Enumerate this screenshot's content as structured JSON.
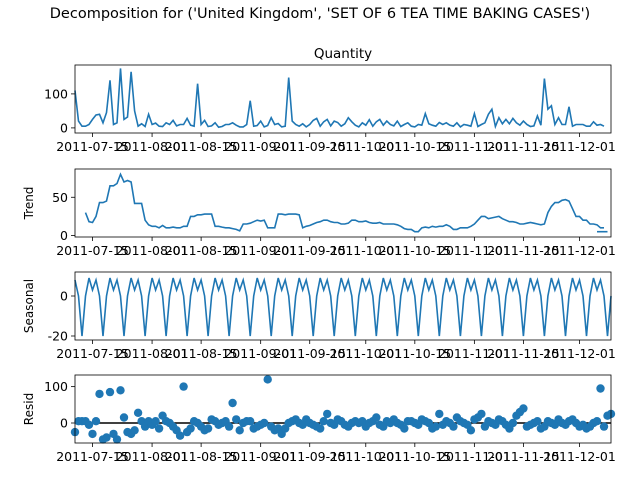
{
  "figure": {
    "suptitle": "Decomposition for ('United Kingdom', 'SET OF 6 TEA TIME BAKING CASES')"
  },
  "chart_data": [
    {
      "type": "line",
      "title": "Quantity",
      "ylabel": "",
      "xlabel": "",
      "x_tick_labels": [
        "2011-07-15",
        "2011-08-01",
        "2011-08-15",
        "2011-09-01",
        "2011-09-15",
        "2011-10-01",
        "2011-10-15",
        "2011-11-01",
        "2011-11-15",
        "2011-12-01"
      ],
      "yticks": [
        0,
        100
      ],
      "ylim": [
        -15,
        185
      ],
      "color": "#1f77b4",
      "values": [
        110,
        20,
        5,
        5,
        10,
        25,
        38,
        40,
        15,
        45,
        140,
        10,
        15,
        175,
        25,
        32,
        165,
        50,
        5,
        12,
        4,
        40,
        10,
        14,
        5,
        4,
        15,
        10,
        22,
        6,
        10,
        10,
        28,
        8,
        5,
        130,
        10,
        22,
        4,
        6,
        15,
        2,
        4,
        10,
        10,
        15,
        8,
        3,
        3,
        10,
        80,
        5,
        7,
        20,
        3,
        7,
        30,
        10,
        13,
        3,
        5,
        148,
        20,
        10,
        5,
        12,
        3,
        10,
        22,
        28,
        5,
        18,
        25,
        6,
        20,
        16,
        5,
        12,
        30,
        18,
        8,
        3,
        15,
        8,
        24,
        5,
        18,
        25,
        8,
        20,
        10,
        6,
        20,
        4,
        10,
        15,
        5,
        3,
        10,
        8,
        42,
        12,
        8,
        5,
        16,
        10,
        15,
        8,
        5,
        15,
        3,
        10,
        8,
        5,
        42,
        4,
        10,
        15,
        40,
        55,
        4,
        30,
        12,
        25,
        12,
        28,
        15,
        8,
        20,
        10,
        4,
        6,
        35,
        8,
        145,
        55,
        65,
        10,
        30,
        10,
        10,
        62,
        5,
        10,
        10,
        10,
        5,
        5,
        18,
        8,
        10,
        5
      ]
    },
    {
      "type": "line",
      "title": "",
      "ylabel": "Trend",
      "xlabel": "",
      "x_tick_labels": [
        "2011-07-15",
        "2011-08-01",
        "2011-08-15",
        "2011-09-01",
        "2011-09-15",
        "2011-10-01",
        "2011-10-15",
        "2011-11-01",
        "2011-11-15",
        "2011-12-01"
      ],
      "yticks": [
        0,
        50
      ],
      "ylim": [
        -2,
        87
      ],
      "color": "#1f77b4",
      "start_index": 3,
      "values": [
        30,
        18,
        17,
        25,
        43,
        43,
        45,
        65,
        65,
        68,
        80,
        70,
        72,
        70,
        42,
        42,
        42,
        20,
        14,
        12,
        12,
        10,
        13,
        10,
        10,
        11,
        10,
        10,
        12,
        12,
        25,
        25,
        27,
        27,
        28,
        28,
        28,
        12,
        12,
        11,
        10,
        10,
        9,
        8,
        6,
        15,
        15,
        16,
        18,
        20,
        19,
        20,
        10,
        10,
        10,
        28,
        28,
        27,
        28,
        28,
        28,
        27,
        10,
        12,
        13,
        15,
        17,
        18,
        20,
        20,
        18,
        17,
        17,
        15,
        15,
        16,
        20,
        20,
        18,
        18,
        19,
        17,
        16,
        16,
        17,
        15,
        15,
        15,
        15,
        14,
        12,
        9,
        8,
        8,
        5,
        5,
        10,
        11,
        10,
        12,
        11,
        12,
        12,
        14,
        12,
        8,
        8,
        10,
        10,
        10,
        12,
        15,
        20,
        25,
        25,
        22,
        23,
        24,
        25,
        22,
        20,
        18,
        18,
        17,
        15,
        15,
        16,
        17,
        16,
        15,
        14,
        15,
        30,
        38,
        43,
        43,
        46,
        47,
        45,
        35,
        25,
        25,
        20,
        20,
        15,
        15,
        14,
        10,
        10
      ],
      "end_values": [
        5,
        5,
        5,
        5
      ]
    },
    {
      "type": "line",
      "title": "",
      "ylabel": "Seasonal",
      "xlabel": "",
      "x_tick_labels": [
        "2011-07-15",
        "2011-08-01",
        "2011-08-15",
        "2011-09-01",
        "2011-09-15",
        "2011-10-01",
        "2011-10-15",
        "2011-11-01",
        "2011-11-15",
        "2011-12-01"
      ],
      "yticks": [
        -20,
        0
      ],
      "ylim": [
        -22,
        12
      ],
      "color": "#1f77b4",
      "period": 6,
      "pattern": [
        8,
        0,
        -20,
        0,
        9,
        3
      ]
    },
    {
      "type": "scatter",
      "title": "",
      "ylabel": "Resid",
      "xlabel": "",
      "x_tick_labels": [
        "2011-07-15",
        "2011-08-01",
        "2011-08-15",
        "2011-09-01",
        "2011-09-15",
        "2011-10-01",
        "2011-10-15",
        "2011-11-01",
        "2011-11-15",
        "2011-12-01"
      ],
      "yticks": [
        0,
        100
      ],
      "ylim": [
        -55,
        132
      ],
      "color": "#1f77b4",
      "baseline": 0,
      "values": [
        -25,
        5,
        5,
        5,
        -5,
        -30,
        5,
        80,
        -45,
        -40,
        85,
        -30,
        -45,
        90,
        15,
        -25,
        -30,
        -20,
        28,
        5,
        -10,
        5,
        -5,
        5,
        -15,
        20,
        5,
        0,
        -10,
        -20,
        -35,
        100,
        -25,
        -15,
        5,
        0,
        -10,
        -20,
        -15,
        10,
        5,
        -5,
        0,
        5,
        -10,
        55,
        10,
        -20,
        0,
        5,
        5,
        -15,
        -10,
        -5,
        0,
        120,
        -10,
        -20,
        -15,
        -30,
        -15,
        0,
        5,
        10,
        0,
        -5,
        10,
        0,
        -5,
        -10,
        -15,
        5,
        25,
        0,
        -5,
        10,
        5,
        -5,
        -10,
        0,
        5,
        0,
        5,
        -10,
        0,
        5,
        15,
        -5,
        -10,
        5,
        0,
        10,
        0,
        -5,
        -15,
        5,
        5,
        0,
        -5,
        10,
        5,
        0,
        -15,
        -10,
        25,
        -5,
        5,
        0,
        -10,
        15,
        5,
        0,
        -5,
        -20,
        10,
        15,
        25,
        -10,
        5,
        0,
        -5,
        10,
        5,
        -5,
        -15,
        0,
        20,
        30,
        40,
        -10,
        -5,
        0,
        5,
        -15,
        -10,
        5,
        0,
        -5,
        10,
        0,
        -5,
        5,
        10,
        0,
        -10,
        -5,
        -15,
        -10,
        0,
        5,
        95,
        -10,
        20,
        25,
        -45,
        -10,
        0,
        -15,
        50,
        -5,
        -10,
        -15,
        10,
        15,
        5,
        -10
      ],
      "extra_points": [
        [
          113,
          -15
        ],
        [
          119,
          5
        ],
        [
          121,
          -25
        ],
        [
          128,
          20
        ],
        [
          141,
          0
        ],
        [
          148,
          -10
        ]
      ]
    }
  ]
}
